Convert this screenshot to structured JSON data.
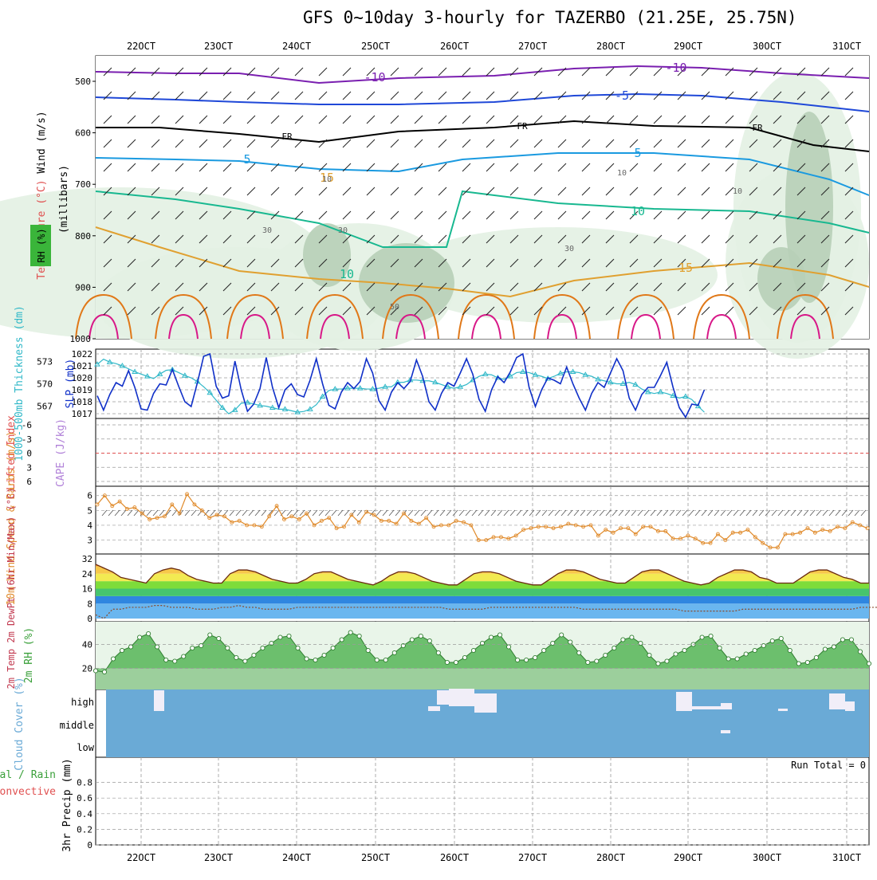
{
  "title": "GFS 0~10day 3-hourly for TAZERBO (21.25E, 25.75N)",
  "colors": {
    "grid": "#9a9a9a",
    "slp": "#1030c8",
    "thickness": "#30b8c8",
    "wind": "#e08a2a",
    "rh_fill": "#58b85a",
    "cloud": "#6aaad6",
    "lifted": "#e05050"
  },
  "chart_data": [
    {
      "type": "line",
      "title": "Upper-air cross section",
      "x": [
        "22OCT",
        "23OCT",
        "24OCT",
        "25OCT",
        "26OCT",
        "27OCT",
        "28OCT",
        "29OCT",
        "30OCT",
        "31OCT"
      ],
      "ylabel": "(millibars)",
      "yticks": [
        500,
        600,
        700,
        800,
        900,
        1000
      ],
      "axis_labels": {
        "wind": "Wind (m/s)",
        "temperature": "Temperature (°C)",
        "rh": "RH (%)"
      },
      "isotherm_labels": [
        "-10",
        "-10",
        "-5",
        "FR",
        "FR",
        "FR",
        "5",
        "5",
        "10",
        "10",
        "15",
        "15"
      ],
      "rh_labels": [
        "10",
        "10",
        "10",
        "30",
        "30",
        "30",
        "50"
      ]
    },
    {
      "type": "line",
      "title": "SLP / Thickness",
      "ylabel_left": "1000-500mb Thickness (dm)",
      "ylabel_right": "SLP (mb)",
      "thickness_ticks": [
        "573",
        "570",
        "567"
      ],
      "slp_ticks": [
        "1022",
        "1021",
        "1020",
        "1019",
        "1018",
        "1017"
      ],
      "series": [
        {
          "name": "SLP (mb)",
          "values": [
            1018.5,
            1017.3,
            1018.6,
            1019.6,
            1019.3,
            1020.6,
            1019.2,
            1017.4,
            1017.3,
            1018.7,
            1019.5,
            1019.4,
            1020.7,
            1019.3,
            1018.0,
            1017.6,
            1019.6,
            1021.8,
            1022.0,
            1019.3,
            1018.3,
            1018.5,
            1021.4,
            1019.0,
            1017.2,
            1017.8,
            1019.1,
            1021.7,
            1019.2,
            1017.5,
            1019.0,
            1019.5,
            1018.6,
            1018.4,
            1019.8,
            1021.6,
            1019.5,
            1017.7,
            1017.4,
            1018.8,
            1019.6,
            1019.1,
            1019.7,
            1021.6,
            1020.4,
            1018.1,
            1017.3,
            1018.8,
            1019.6,
            1019.1,
            1019.7,
            1021.5,
            1020.1,
            1018.0,
            1017.3,
            1018.7,
            1019.6,
            1019.3,
            1020.4,
            1021.6,
            1020.3,
            1018.2,
            1017.2,
            1019.0,
            1020.1,
            1019.6,
            1020.5,
            1021.7,
            1022.0,
            1019.2,
            1017.6,
            1019.0,
            1020.0,
            1019.8,
            1019.5,
            1020.9,
            1019.5,
            1018.3,
            1017.3,
            1018.7,
            1019.6,
            1019.2,
            1020.4,
            1021.6,
            1020.6,
            1018.3,
            1017.3,
            1018.6,
            1019.2,
            1019.2,
            1020.2,
            1021.3,
            1019.2,
            1017.5,
            1016.7,
            1017.8,
            1017.7,
            1019.0
          ]
        },
        {
          "name": "Thickness (dm)",
          "values": [
            572.6,
            573.3,
            572.9,
            572.7,
            572.4,
            572.0,
            571.6,
            571.3,
            571.0,
            570.7,
            571.3,
            571.8,
            571.9,
            571.5,
            571.1,
            570.8,
            570.3,
            569.6,
            568.8,
            567.8,
            566.8,
            566.0,
            566.5,
            567.4,
            567.5,
            567.3,
            567.1,
            567.0,
            566.8,
            566.6,
            566.6,
            566.4,
            566.2,
            566.3,
            566.6,
            567.2,
            568.3,
            569.1,
            569.3,
            569.3,
            569.4,
            569.4,
            569.4,
            569.3,
            569.3,
            569.4,
            569.6,
            569.6,
            570.2,
            570.2,
            570.5,
            570.5,
            570.4,
            570.4,
            570.2,
            569.9,
            569.6,
            569.4,
            569.6,
            569.9,
            570.5,
            571.0,
            571.3,
            571.2,
            570.8,
            570.6,
            571.0,
            571.5,
            571.6,
            571.5,
            571.2,
            571.0,
            570.7,
            571.0,
            571.4,
            571.6,
            571.6,
            571.5,
            571.2,
            571.0,
            570.6,
            570.4,
            570.2,
            570.0,
            570.0,
            570.2,
            569.9,
            569.3,
            568.9,
            568.7,
            568.9,
            568.7,
            568.4,
            568.1,
            568.3,
            567.9,
            567.0,
            566.2
          ]
        }
      ]
    },
    {
      "type": "line",
      "title": "Lifted Index / CAPE",
      "ylabel_left": "Lifted Index",
      "ylabel_right": "CAPE (J/kg)",
      "yticks": [
        "-6",
        "-3",
        "0",
        "3",
        "6"
      ],
      "zero_line": 0
    },
    {
      "type": "line",
      "title": "10m Wind Speed & Barbs",
      "ylabel": "10m Wind Speed & Barbs (m/s)",
      "yticks": [
        "6",
        "5",
        "4",
        "3"
      ],
      "series": [
        {
          "name": "10m Wind (m/s)",
          "values": [
            5.4,
            6.0,
            5.3,
            5.6,
            5.1,
            5.2,
            4.8,
            4.4,
            4.5,
            4.6,
            5.4,
            4.8,
            6.1,
            5.4,
            5.0,
            4.5,
            4.7,
            4.6,
            4.2,
            4.3,
            4.0,
            4.0,
            3.9,
            4.6,
            5.3,
            4.4,
            4.6,
            4.4,
            4.8,
            4.0,
            4.3,
            4.5,
            3.8,
            3.9,
            4.7,
            4.2,
            4.9,
            4.7,
            4.3,
            4.3,
            4.1,
            4.8,
            4.3,
            4.1,
            4.5,
            3.9,
            4.0,
            4.0,
            4.3,
            4.2,
            4.0,
            3.0,
            3.0,
            3.2,
            3.2,
            3.1,
            3.3,
            3.7,
            3.8,
            3.9,
            3.9,
            3.8,
            3.9,
            4.1,
            4.0,
            3.9,
            4.0,
            3.3,
            3.7,
            3.5,
            3.8,
            3.8,
            3.4,
            3.9,
            3.9,
            3.6,
            3.6,
            3.1,
            3.1,
            3.3,
            3.1,
            2.8,
            2.8,
            3.4,
            3.0,
            3.5,
            3.5,
            3.7,
            3.2,
            2.8,
            2.5,
            2.5,
            3.4,
            3.4,
            3.5,
            3.8,
            3.5,
            3.7,
            3.6,
            3.9,
            3.8,
            4.2,
            4.0,
            3.8
          ]
        }
      ]
    },
    {
      "type": "area",
      "title": "2m Temp / DewPt",
      "ylabel": "2m Temp 2m DewPt (6hr Min/Max) (°C)",
      "yticks": [
        "32",
        "24",
        "16",
        "8",
        "0"
      ],
      "series": [
        {
          "name": "2m Temp (°C)",
          "values": [
            29,
            27,
            25,
            22,
            21,
            20,
            19,
            24,
            26,
            27,
            26,
            23,
            21,
            20,
            19,
            19,
            24,
            26,
            26,
            25,
            23,
            21,
            20,
            19,
            19,
            21,
            24,
            25,
            25,
            23,
            21,
            20,
            19,
            18,
            20,
            23,
            25,
            25,
            24,
            22,
            20,
            19,
            18,
            18,
            21,
            24,
            25,
            25,
            24,
            22,
            20,
            19,
            18,
            18,
            21,
            24,
            26,
            26,
            25,
            23,
            21,
            20,
            19,
            19,
            22,
            25,
            26,
            26,
            24,
            22,
            20,
            19,
            18,
            19,
            22,
            24,
            26,
            26,
            25,
            22,
            21,
            19,
            19,
            19,
            22,
            25,
            26,
            26,
            24,
            22,
            21,
            19,
            19
          ]
        },
        {
          "name": "2m DewPt (°C)",
          "values": [
            2,
            0,
            5,
            5,
            6,
            6,
            6,
            7,
            7,
            6,
            6,
            6,
            5,
            5,
            5,
            6,
            6,
            7,
            6,
            6,
            5,
            5,
            5,
            5,
            6,
            6,
            6,
            6,
            6,
            6,
            6,
            6,
            6,
            6,
            6,
            6,
            6,
            6,
            6,
            6,
            6,
            6,
            5,
            5,
            5,
            5,
            5,
            6,
            6,
            6,
            6,
            6,
            6,
            6,
            6,
            6,
            6,
            6,
            5,
            5,
            5,
            5,
            5,
            5,
            5,
            5,
            5,
            5,
            5,
            5,
            4,
            4,
            4,
            4,
            4,
            4,
            4,
            5,
            5,
            5,
            5,
            5,
            5,
            5,
            5,
            5,
            5,
            5,
            5,
            5,
            5,
            6,
            6,
            6
          ]
        }
      ]
    },
    {
      "type": "area",
      "title": "2m RH",
      "ylabel": "2m RH (%)",
      "yticks": [
        "40",
        "20"
      ],
      "series": [
        {
          "name": "2m RH (%)",
          "values": [
            18,
            17,
            28,
            35,
            38,
            46,
            49,
            38,
            27,
            26,
            30,
            37,
            39,
            48,
            45,
            37,
            29,
            26,
            31,
            37,
            41,
            46,
            47,
            37,
            28,
            27,
            31,
            37,
            44,
            50,
            47,
            35,
            27,
            27,
            33,
            39,
            44,
            47,
            43,
            33,
            25,
            25,
            29,
            35,
            41,
            46,
            48,
            38,
            27,
            27,
            29,
            35,
            41,
            48,
            42,
            33,
            25,
            26,
            31,
            37,
            44,
            46,
            41,
            31,
            24,
            26,
            32,
            35,
            40,
            46,
            47,
            37,
            28,
            28,
            32,
            35,
            39,
            43,
            45,
            35,
            24,
            25,
            29,
            36,
            38,
            44,
            44,
            34,
            24
          ]
        }
      ]
    },
    {
      "type": "heatmap",
      "title": "Cloud Cover",
      "ylabel": "Cloud Cover (%)",
      "levels": [
        "high",
        "middle",
        "low"
      ]
    },
    {
      "type": "bar",
      "title": "3hr Precip",
      "ylabel": "3hr Precip (mm)",
      "legend": [
        "Total / Rain",
        "Convective"
      ],
      "yticks": [
        "0.8",
        "0.6",
        "0.4",
        "0.2",
        "0"
      ],
      "ylim": [
        0,
        1.0
      ],
      "run_total": "Run Total = 0",
      "values": []
    }
  ]
}
